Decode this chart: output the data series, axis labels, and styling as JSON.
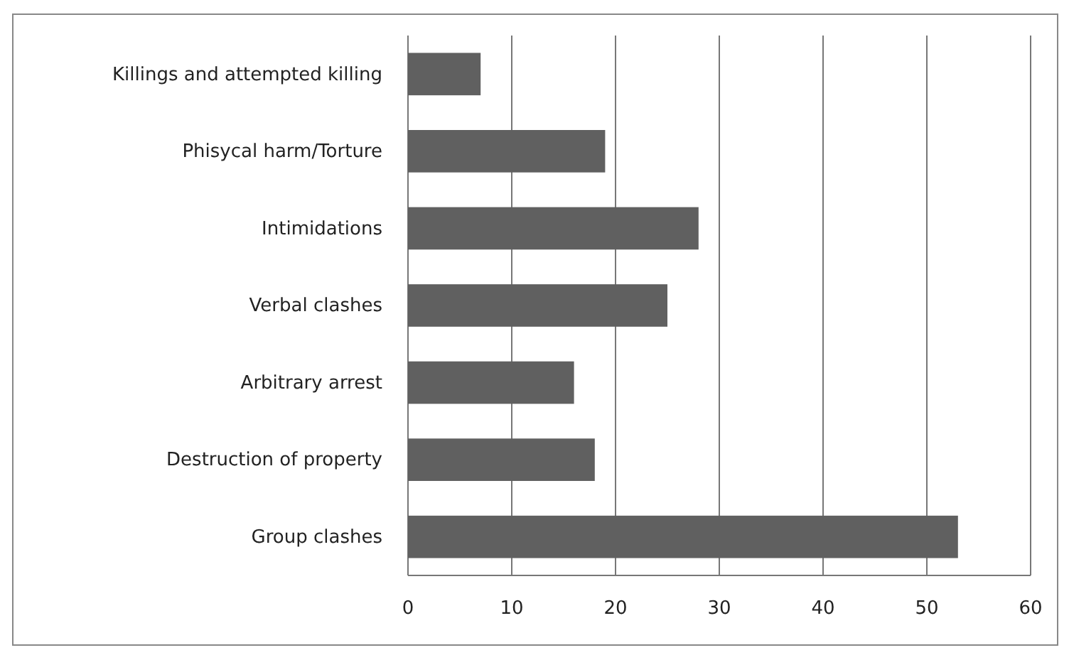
{
  "chart_data": {
    "type": "bar",
    "orientation": "horizontal",
    "categories": [
      "Killings and attempted killing",
      "Phisycal harm/Torture",
      "Intimidations",
      "Verbal clashes",
      "Arbitrary arrest",
      "Destruction of property",
      "Group clashes"
    ],
    "values": [
      7,
      19,
      28,
      25,
      16,
      18,
      53
    ],
    "color": "#606060",
    "xlim": [
      0,
      60
    ],
    "xticks": [
      0,
      10,
      20,
      30,
      40,
      50,
      60
    ],
    "grid": "x"
  }
}
